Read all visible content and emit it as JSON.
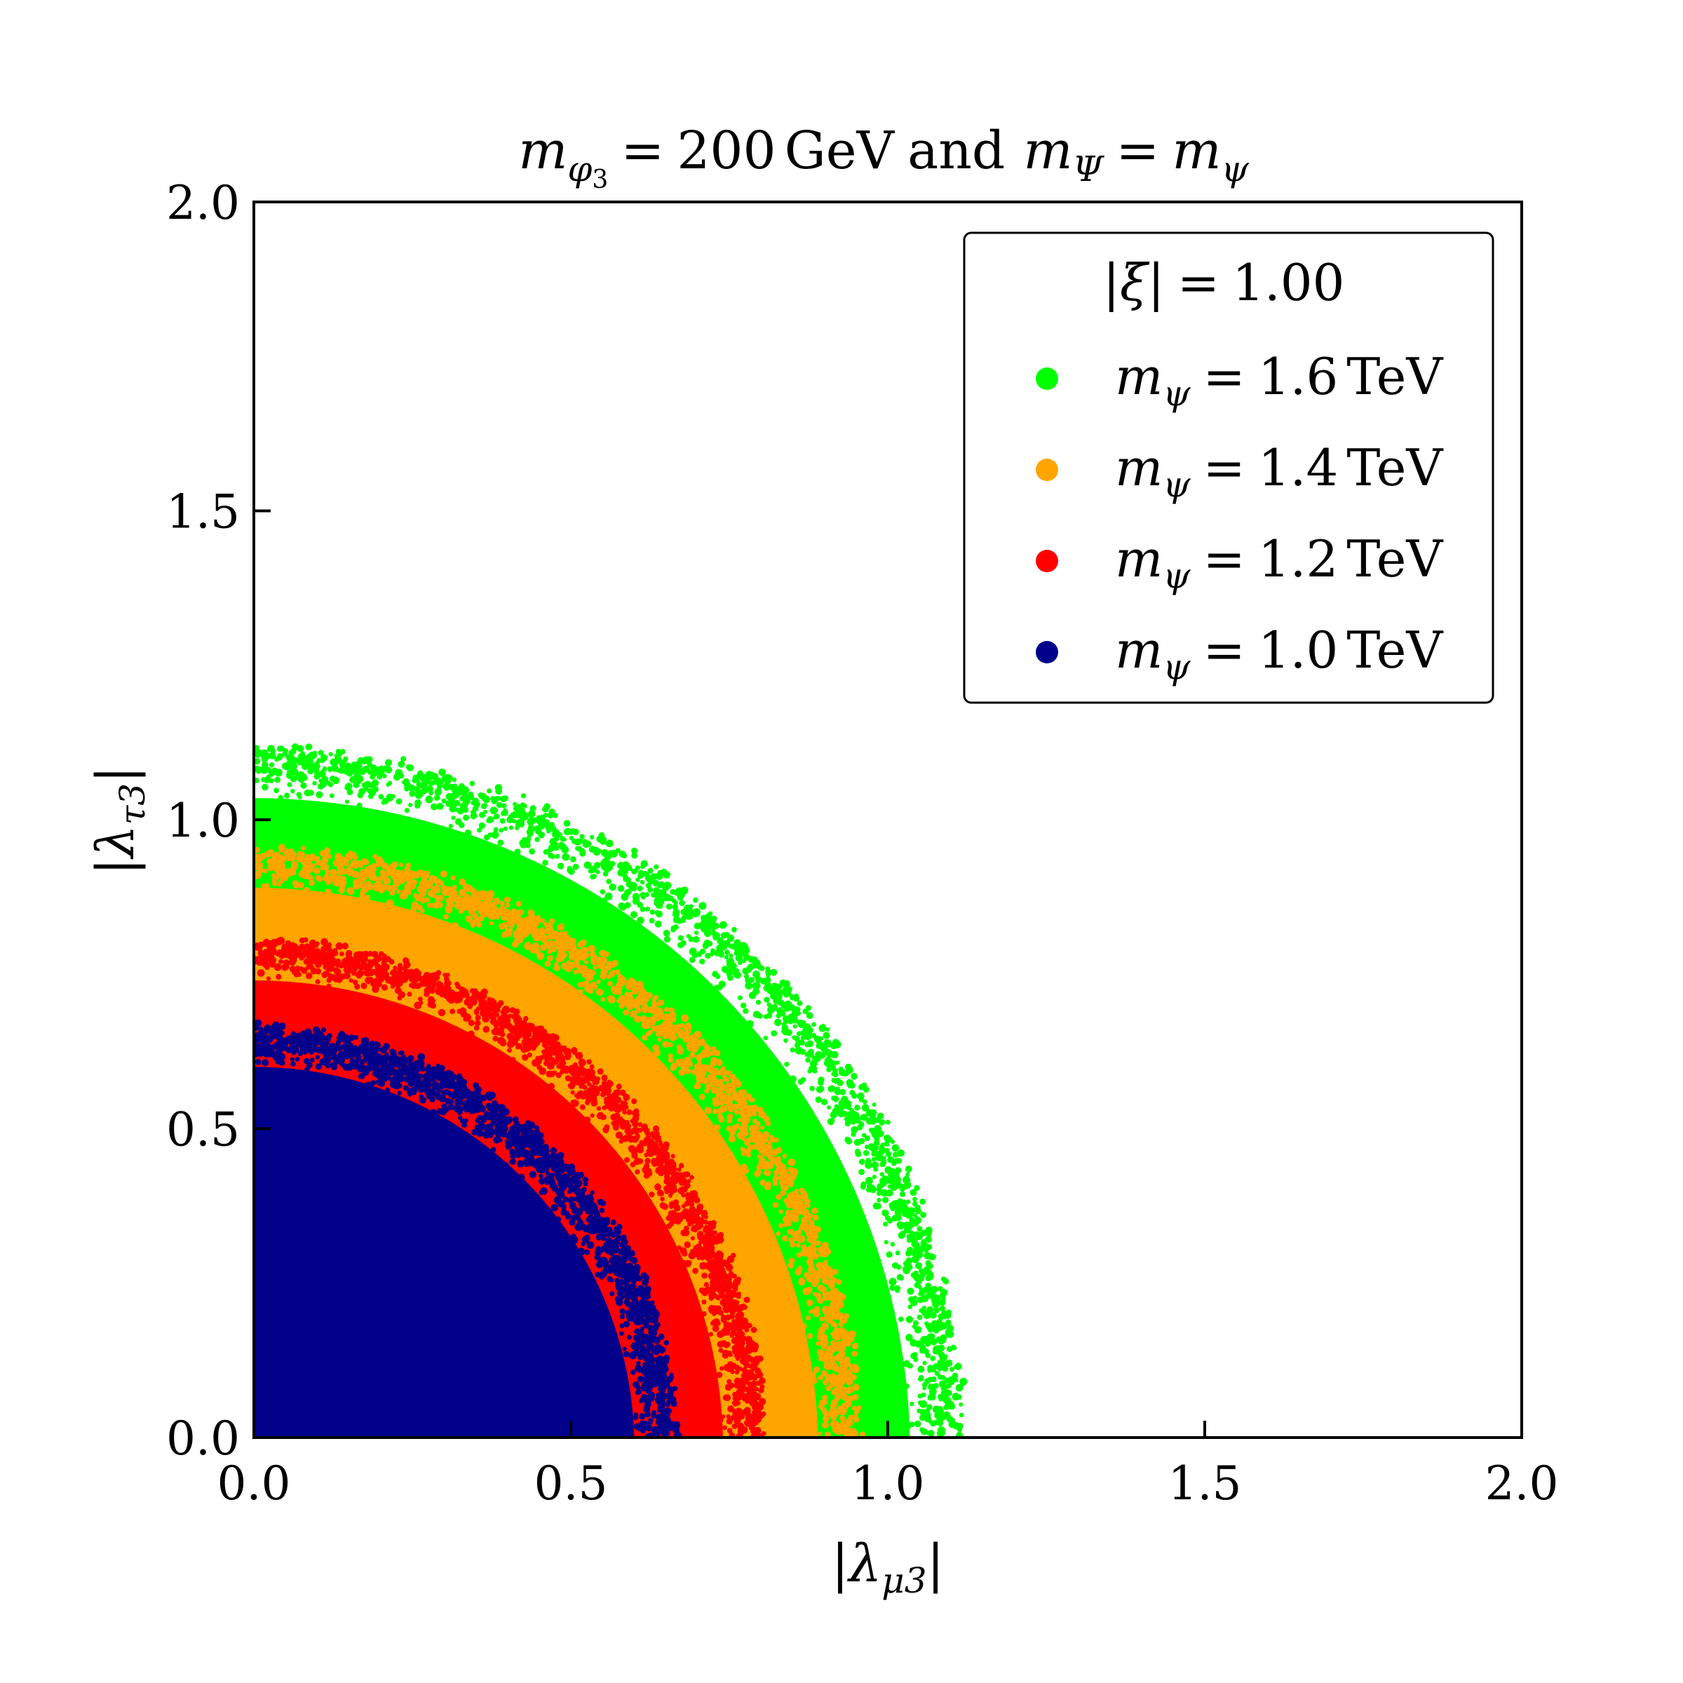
{
  "chart_data": {
    "type": "scatter",
    "title": {
      "m": "m",
      "phi_sub": "φ",
      "phi_subsub": "3",
      "eq1": "=",
      "value": "200",
      "unit": "GeV",
      "and": "and",
      "m2": "m",
      "Psi_sub": "Ψ",
      "eq2": "=",
      "m3": "m",
      "psi_sub": "ψ"
    },
    "xlabel": {
      "bar_l": "|",
      "lambda": "λ",
      "sub": "μ3",
      "bar_r": "|"
    },
    "ylabel": {
      "bar_l": "|",
      "lambda": "λ",
      "sub": "τ3",
      "bar_r": "|"
    },
    "xlim": [
      0,
      2
    ],
    "ylim": [
      0,
      2
    ],
    "xticks": [
      "0.0",
      "0.5",
      "1.0",
      "1.5",
      "2.0"
    ],
    "yticks": [
      "0.0",
      "0.5",
      "1.0",
      "1.5",
      "2.0"
    ],
    "xtick_values": [
      0,
      0.5,
      1.0,
      1.5,
      2.0
    ],
    "ytick_values": [
      0,
      0.5,
      1.0,
      1.5,
      2.0
    ],
    "grid": false,
    "legend": {
      "placement": "top-right",
      "title": {
        "bar_l": "|",
        "xi": "ξ",
        "bar_r": "|",
        "eq": "=",
        "value": "1.00"
      },
      "entry_m": "m",
      "entry_sub": "ψ",
      "entry_eq": "=",
      "entry_unit": "TeV"
    },
    "series": [
      {
        "name": "1.6",
        "color": "#00ff00",
        "r_inner": 0.0,
        "r_outer": 1.11,
        "r_edge_spread": 0.05
      },
      {
        "name": "1.4",
        "color": "#ffa500",
        "r_inner": 0.0,
        "r_outer": 0.95,
        "r_edge_spread": 0.04
      },
      {
        "name": "1.2",
        "color": "#ff0000",
        "r_inner": 0.0,
        "r_outer": 0.8,
        "r_edge_spread": 0.04
      },
      {
        "name": "1.0",
        "color": "#00008b",
        "r_inner": 0.0,
        "r_outer": 0.66,
        "r_edge_spread": 0.04
      }
    ]
  }
}
